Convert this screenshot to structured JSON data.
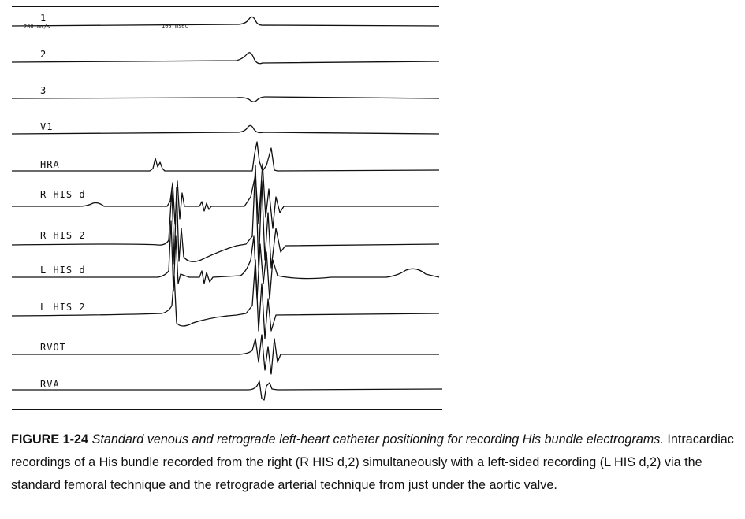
{
  "figure": {
    "speed_label": "200 mm/s",
    "time_marker_label": "100 msec",
    "leads": [
      "1",
      "2",
      "3",
      "V1",
      "HRA",
      "R HIS d",
      "R HIS 2",
      "L HIS d",
      "L HIS 2",
      "RVOT",
      "RVA"
    ]
  },
  "caption": {
    "number": "FIGURE 1-24",
    "title": "Standard venous and retrograde left-heart catheter positioning for recording His bundle electrograms.",
    "body": "Intracardiac recordings of a His bundle recorded from the right (R HIS d,2) simultaneously with a left-sided recording (L HIS d,2) via the standard femoral technique and the retrograde arterial technique from just under the aortic valve."
  }
}
